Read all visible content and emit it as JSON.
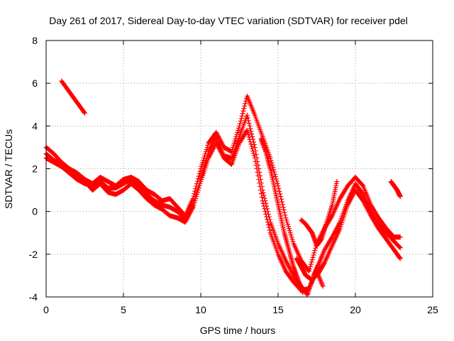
{
  "chart_data": {
    "type": "scatter",
    "title": "Day 261 of 2017, Sidereal Day-to-day VTEC variation (SDTVAR) for receiver pdel",
    "xlabel": "GPS time / hours",
    "ylabel": "SDTVAR / TECUs",
    "xlim": [
      0,
      25
    ],
    "ylim": [
      -4,
      8
    ],
    "xticks": [
      0,
      5,
      10,
      15,
      20,
      25
    ],
    "yticks": [
      -4,
      -2,
      0,
      2,
      4,
      6,
      8
    ],
    "grid": true,
    "legend": "none",
    "marker": "+",
    "color": "#ff0000",
    "series": [
      {
        "x": [
          0.0,
          0.5,
          1.0,
          1.5,
          2.0,
          2.5,
          3.0,
          3.5,
          4.0,
          4.5,
          5.0,
          5.5,
          6.0,
          6.5,
          7.0,
          7.5,
          8.0,
          8.5,
          9.0,
          9.5,
          10.0,
          10.5,
          11.0,
          11.5,
          12.0,
          12.5,
          13.0,
          13.5,
          14.0,
          14.5,
          15.0,
          15.5,
          16.0,
          16.5,
          16.9,
          17.3,
          17.6,
          18.0,
          18.5,
          19.0,
          19.5,
          20.0,
          20.5,
          21.0,
          21.5,
          22.0,
          22.5,
          22.9
        ],
        "y": [
          2.5,
          2.3,
          2.1,
          1.8,
          1.5,
          1.3,
          1.2,
          1.4,
          1.1,
          1.1,
          1.3,
          1.5,
          1.2,
          0.8,
          0.5,
          0.3,
          0.2,
          0.0,
          -0.4,
          0.3,
          1.5,
          2.8,
          3.5,
          2.6,
          2.5,
          3.5,
          4.5,
          3.0,
          1.0,
          -0.5,
          -1.5,
          -2.3,
          -3.0,
          -3.5,
          -3.9,
          -3.0,
          -2.5,
          -1.8,
          -1.2,
          -0.5,
          0.5,
          1.3,
          0.8,
          0.0,
          -0.6,
          -1.0,
          -1.4,
          -1.7
        ]
      },
      {
        "x": [
          0.0,
          0.5,
          1.0,
          1.5,
          2.0,
          2.5,
          3.0,
          3.5,
          4.0,
          4.5,
          5.0,
          5.5,
          6.0,
          6.5,
          7.0,
          7.5,
          8.0,
          8.5,
          9.0,
          9.5,
          10.0,
          10.5,
          11.0,
          11.5,
          12.0,
          12.5,
          13.0,
          13.5,
          14.0,
          14.5,
          15.0,
          15.5,
          16.0,
          16.5,
          17.0,
          17.5,
          18.0,
          18.5,
          19.0,
          19.5,
          20.0,
          20.5,
          21.0,
          21.5,
          22.0,
          22.5,
          22.9
        ],
        "y": [
          3.0,
          2.7,
          2.3,
          2.0,
          1.8,
          1.5,
          1.3,
          1.6,
          1.4,
          1.2,
          1.5,
          1.6,
          1.4,
          1.0,
          0.8,
          0.5,
          0.6,
          0.2,
          -0.2,
          0.6,
          2.0,
          3.2,
          3.7,
          3.0,
          2.8,
          4.0,
          5.4,
          4.5,
          3.5,
          2.5,
          1.2,
          -0.3,
          -1.5,
          -2.3,
          -2.8,
          -1.5,
          -0.8,
          -0.2,
          0.6,
          1.2,
          1.6,
          1.2,
          0.3,
          -0.3,
          -0.8,
          -1.2,
          -1.2
        ]
      },
      {
        "x": [
          0.0,
          0.5,
          1.0,
          1.5,
          2.0,
          2.5,
          3.0,
          3.5,
          4.0,
          4.5,
          5.0,
          5.5,
          6.0,
          6.5,
          7.0,
          7.5,
          8.0,
          8.5,
          9.0,
          9.5,
          10.0,
          10.5,
          11.0,
          11.5,
          12.0,
          12.5,
          13.0,
          13.5,
          14.0,
          14.5,
          15.0,
          15.5,
          16.0,
          16.5,
          17.0,
          17.5,
          17.9
        ],
        "y": [
          2.7,
          2.4,
          2.2,
          1.9,
          1.6,
          1.4,
          1.0,
          1.3,
          0.9,
          0.8,
          1.0,
          1.3,
          1.0,
          0.6,
          0.3,
          0.1,
          -0.2,
          -0.3,
          -0.5,
          0.2,
          1.4,
          2.5,
          3.2,
          2.5,
          2.2,
          3.2,
          3.8,
          2.5,
          0.5,
          -1.0,
          -2.0,
          -2.8,
          -3.3,
          -3.7,
          -3.6,
          -2.8,
          -3.5
        ]
      },
      {
        "x": [
          16.2,
          16.5,
          16.8,
          17.2,
          17.6,
          18.0,
          18.5,
          19.0,
          19.5,
          20.0,
          20.5,
          21.0,
          21.5,
          22.0,
          22.5,
          22.9
        ],
        "y": [
          -2.2,
          -2.6,
          -3.0,
          -3.2,
          -2.9,
          -2.4,
          -1.6,
          -0.8,
          0.3,
          1.0,
          0.5,
          -0.2,
          -0.8,
          -1.3,
          -1.8,
          -2.2
        ]
      },
      {
        "x": [
          1.0,
          1.5,
          2.0,
          2.5
        ],
        "y": [
          6.1,
          5.6,
          5.1,
          4.6
        ]
      },
      {
        "x": [
          13.9,
          14.2,
          14.5,
          14.8,
          15.1,
          15.4,
          15.7,
          16.0,
          16.3,
          16.6
        ],
        "y": [
          3.4,
          2.8,
          2.0,
          1.0,
          0.0,
          -1.0,
          -1.8,
          -2.6,
          -3.2,
          -3.8
        ]
      },
      {
        "x": [
          16.5,
          16.8,
          17.2,
          17.5,
          17.8,
          18.1,
          18.5,
          18.8
        ],
        "y": [
          -0.4,
          -0.6,
          -1.0,
          -1.6,
          -1.3,
          -0.6,
          0.3,
          1.4
        ]
      },
      {
        "x": [
          22.3,
          22.5,
          22.7,
          22.9
        ],
        "y": [
          1.4,
          1.2,
          1.0,
          0.7
        ]
      }
    ]
  }
}
